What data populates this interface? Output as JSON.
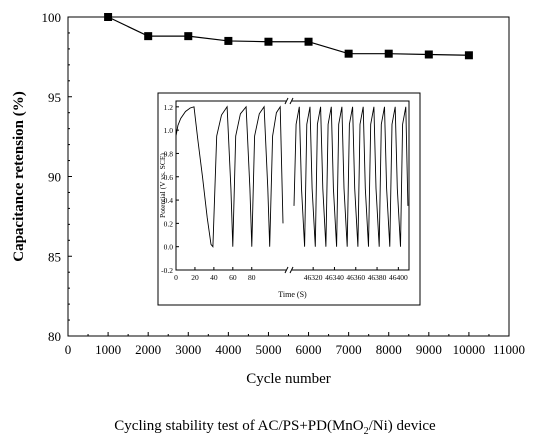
{
  "chart_data": [
    {
      "type": "line",
      "title": "",
      "xlabel": "Cycle number",
      "ylabel": "Capacitance retension (%)",
      "xlim": [
        0,
        11000
      ],
      "ylim": [
        80,
        100
      ],
      "x_ticks": [
        "0",
        "1000",
        "2000",
        "3000",
        "4000",
        "5000",
        "6000",
        "7000",
        "8000",
        "9000",
        "10000",
        "11000"
      ],
      "y_ticks": [
        "80",
        "85",
        "90",
        "95",
        "100"
      ],
      "marker": "square",
      "series": [
        {
          "x": [
            1000,
            2000,
            3000,
            4000,
            5000,
            6000,
            7000,
            8000,
            9000,
            10000
          ],
          "values": [
            100.0,
            98.8,
            98.8,
            98.5,
            98.45,
            98.45,
            97.7,
            97.7,
            97.65,
            97.6
          ]
        }
      ]
    },
    {
      "type": "line",
      "title": "",
      "xlabel": "Time (S)",
      "ylabel": "Potential (V vs. SCE)",
      "ylim": [
        -0.2,
        1.25
      ],
      "broken_x_axis": true,
      "x_ticks_left": [
        "0",
        "20",
        "40",
        "60",
        "80"
      ],
      "x_ticks_right": [
        "46320",
        "46340",
        "46360",
        "46380",
        "46400"
      ],
      "y_ticks": [
        "-0.2",
        "0.0",
        "0.2",
        "0.4",
        "0.6",
        "0.8",
        "1.0",
        "1.2"
      ],
      "series": [
        {
          "segment": "left",
          "x": [
            0,
            2,
            5,
            10,
            15,
            19,
            23,
            28,
            33,
            37,
            39,
            43,
            48,
            54,
            58,
            60,
            63,
            68,
            74,
            78,
            80,
            83,
            88,
            93,
            97,
            99,
            102,
            106,
            110,
            113
          ],
          "values": [
            0.95,
            1.04,
            1.1,
            1.16,
            1.19,
            1.2,
            0.92,
            0.6,
            0.25,
            0.02,
            0.0,
            0.95,
            1.13,
            1.2,
            0.5,
            0.0,
            0.95,
            1.14,
            1.2,
            0.5,
            0.0,
            0.95,
            1.14,
            1.2,
            0.5,
            0.0,
            0.95,
            1.15,
            1.2,
            0.2
          ]
        },
        {
          "segment": "right",
          "x": [
            46302,
            46304,
            46307,
            46309,
            46312,
            46314,
            46317,
            46319,
            46322,
            46324,
            46327,
            46329,
            46332,
            46334,
            46337,
            46339,
            46342,
            46344,
            46347,
            46349,
            46352,
            46354,
            46357,
            46359,
            46362,
            46364,
            46367,
            46369,
            46372,
            46374,
            46377,
            46379,
            46382,
            46384,
            46387,
            46389,
            46392,
            46394,
            46397,
            46399,
            46402,
            46404,
            46407,
            46409
          ],
          "values": [
            0.35,
            1.05,
            1.2,
            0.5,
            0.0,
            1.05,
            1.2,
            0.5,
            0.0,
            1.05,
            1.2,
            0.5,
            0.0,
            1.05,
            1.2,
            0.5,
            0.0,
            1.05,
            1.2,
            0.5,
            0.0,
            1.05,
            1.2,
            0.5,
            0.0,
            1.05,
            1.2,
            0.5,
            0.0,
            1.05,
            1.2,
            0.5,
            0.0,
            1.05,
            1.2,
            0.5,
            0.0,
            1.05,
            1.2,
            0.5,
            0.0,
            1.05,
            1.2,
            0.35
          ]
        }
      ]
    }
  ],
  "caption": {
    "prefix": "Cycling stability test of AC/PS+PD(MnO",
    "subscript": "2",
    "suffix": "/Ni) device"
  }
}
